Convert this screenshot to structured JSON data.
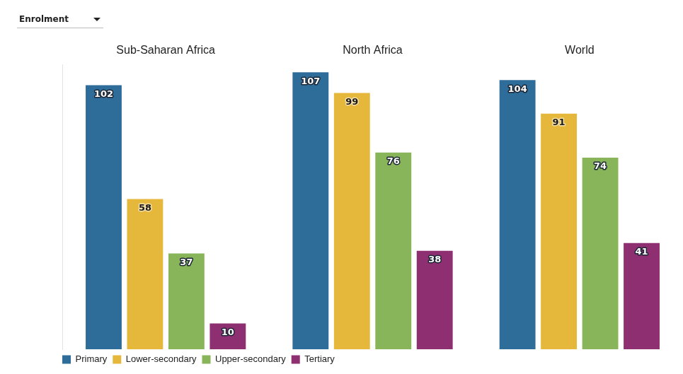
{
  "dropdown_label": "Enrolment",
  "chart_data": {
    "type": "bar",
    "categories": [
      "Sub-Saharan Africa",
      "North Africa",
      "World"
    ],
    "series": [
      {
        "name": "Primary",
        "color": "#2e6d9a",
        "values": [
          102,
          107,
          104
        ]
      },
      {
        "name": "Lower-secondary",
        "color": "#e5b73b",
        "values": [
          58,
          99,
          91
        ]
      },
      {
        "name": "Upper-secondary",
        "color": "#88b55a",
        "values": [
          37,
          76,
          74
        ]
      },
      {
        "name": "Tertiary",
        "color": "#8e2f72",
        "values": [
          10,
          38,
          41
        ]
      }
    ],
    "ylim": [
      0,
      110
    ],
    "yticks": [
      0,
      110
    ],
    "grid": false,
    "legend": "bottom-left",
    "data_labels": true,
    "tick_labels": "x"
  }
}
